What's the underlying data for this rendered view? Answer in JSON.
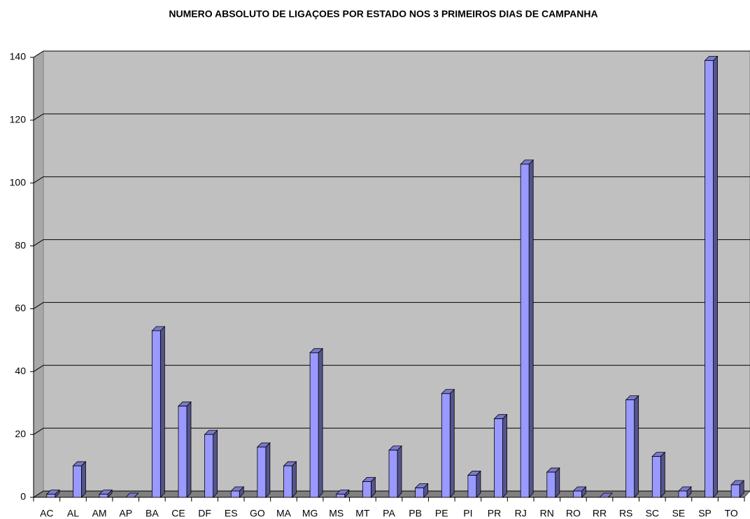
{
  "chart_data": {
    "type": "bar",
    "title": "NUMERO ABSOLUTO DE LIGAÇOES POR ESTADO NOS 3 PRIMEIROS DIAS DE CAMPANHA",
    "categories": [
      "AC",
      "AL",
      "AM",
      "AP",
      "BA",
      "CE",
      "DF",
      "ES",
      "GO",
      "MA",
      "MG",
      "MS",
      "MT",
      "PA",
      "PB",
      "PE",
      "PI",
      "PR",
      "RJ",
      "RN",
      "RO",
      "RR",
      "RS",
      "SC",
      "SE",
      "SP",
      "TO"
    ],
    "values": [
      1,
      10,
      1,
      0,
      53,
      29,
      20,
      2,
      16,
      10,
      46,
      1,
      5,
      15,
      3,
      33,
      7,
      25,
      106,
      8,
      2,
      0,
      31,
      13,
      2,
      139,
      4
    ],
    "color": "#9999ff",
    "ylim": [
      0,
      140
    ],
    "yticks": [
      0,
      20,
      40,
      60,
      80,
      100,
      120,
      140
    ],
    "grid": true
  }
}
